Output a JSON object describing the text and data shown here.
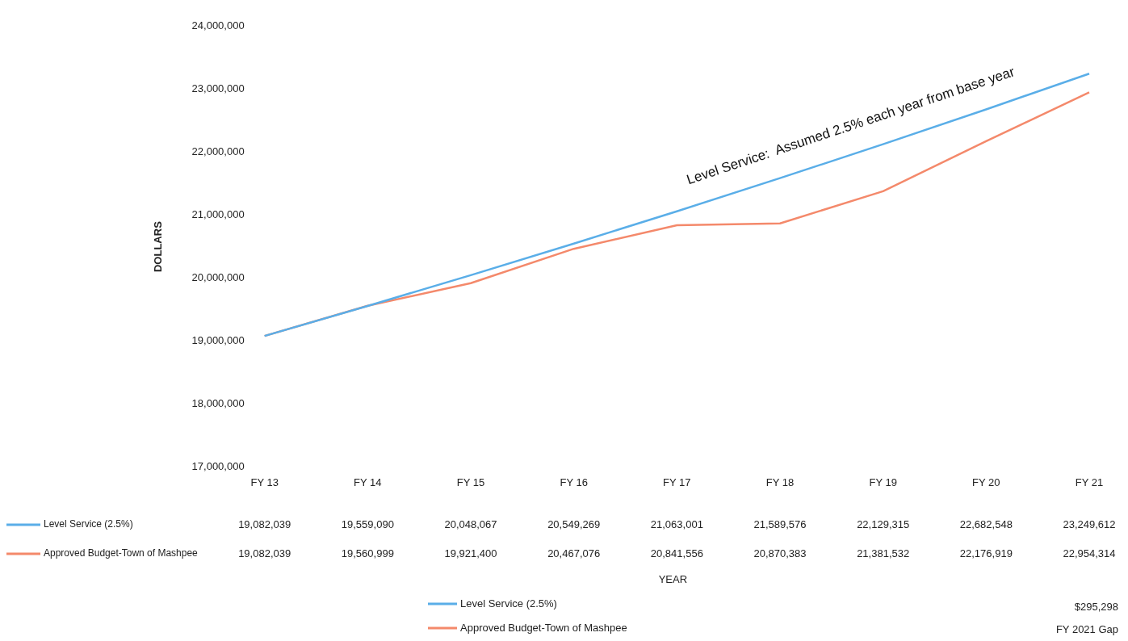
{
  "chart_data": {
    "type": "line",
    "ylabel": "DOLLARS",
    "categories": [
      "FY 13",
      "FY 14",
      "FY 15",
      "FY 16",
      "FY 17",
      "FY 18",
      "FY 19",
      "FY 20",
      "FY 21"
    ],
    "series": [
      {
        "name": "Level Service (2.5%)",
        "color": "#5aaee8",
        "values": [
          19082039,
          19559090,
          20048067,
          20549269,
          21063001,
          21589576,
          22129315,
          22682548,
          23249612
        ],
        "value_labels": [
          "19,082,039",
          "19,559,090",
          "20,048,067",
          "20,549,269",
          "21,063,001",
          "21,589,576",
          "22,129,315",
          "22,682,548",
          "23,249,612"
        ]
      },
      {
        "name": "Approved Budget-Town of Mashpee",
        "color": "#f4896b",
        "values": [
          19082039,
          19560999,
          19921400,
          20467076,
          20841556,
          20870383,
          21381532,
          22176919,
          22954314
        ],
        "value_labels": [
          "19,082,039",
          "19,560,999",
          "19,921,400",
          "20,467,076",
          "20,841,556",
          "20,870,383",
          "21,381,532",
          "22,176,919",
          "22,954,314"
        ]
      }
    ],
    "ylim": [
      17000000,
      24000000
    ],
    "yticks": [
      {
        "value": 17000000,
        "label": "17,000,000"
      },
      {
        "value": 18000000,
        "label": "18,000,000"
      },
      {
        "value": 19000000,
        "label": "19,000,000"
      },
      {
        "value": 20000000,
        "label": "20,000,000"
      },
      {
        "value": 21000000,
        "label": "21,000,000"
      },
      {
        "value": 22000000,
        "label": "22,000,000"
      },
      {
        "value": 23000000,
        "label": "23,000,000"
      },
      {
        "value": 24000000,
        "label": "24,000,000"
      }
    ],
    "grid": false,
    "legend": "bottom",
    "marker": "none",
    "line_style": "solid",
    "annotations": [
      "Level Service:  Assumed 2.5% each year from base year",
      "YEAR",
      "$295,298",
      "FY 2021 Gap"
    ]
  }
}
